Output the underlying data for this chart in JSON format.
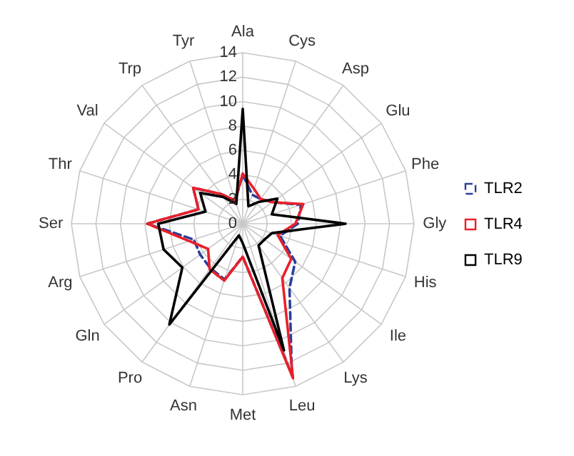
{
  "chart_data": {
    "type": "radar",
    "categories": [
      "Ala",
      "Cys",
      "Asp",
      "Glu",
      "Phe",
      "Gly",
      "His",
      "Ile",
      "Lys",
      "Leu",
      "Met",
      "Asn",
      "Pro",
      "Gln",
      "Arg",
      "Ser",
      "Thr",
      "Val",
      "Trp",
      "Tyr"
    ],
    "series": [
      {
        "name": "TLR2",
        "color": "#2a3f9a",
        "line_style": "dashed",
        "values": [
          4,
          2.5,
          2.5,
          3,
          5,
          4.5,
          3.2,
          5.3,
          6.5,
          13,
          2.7,
          4.8,
          4.5,
          4.3,
          4.2,
          7.8,
          3.8,
          5,
          3,
          2
        ]
      },
      {
        "name": "TLR4",
        "color": "#e8202a",
        "line_style": "solid",
        "values": [
          4.1,
          3,
          2.5,
          3,
          5.2,
          4.3,
          3,
          4.9,
          5.5,
          13.3,
          2.7,
          4.9,
          4.6,
          3.5,
          4.6,
          7.8,
          3.8,
          5,
          3,
          2
        ]
      },
      {
        "name": "TLR9",
        "color": "#000000",
        "line_style": "solid",
        "values": [
          9.4,
          1.5,
          2.2,
          3.5,
          2.5,
          8.4,
          2.5,
          2.2,
          2.2,
          10.9,
          1.6,
          1,
          10.2,
          6.1,
          6.8,
          6.9,
          3.2,
          4.3,
          2.7,
          1.7
        ]
      }
    ],
    "ylim": [
      0,
      14
    ],
    "yticks": [
      0,
      2,
      4,
      6,
      8,
      10,
      12,
      14
    ],
    "grid": true,
    "legend": "right"
  }
}
